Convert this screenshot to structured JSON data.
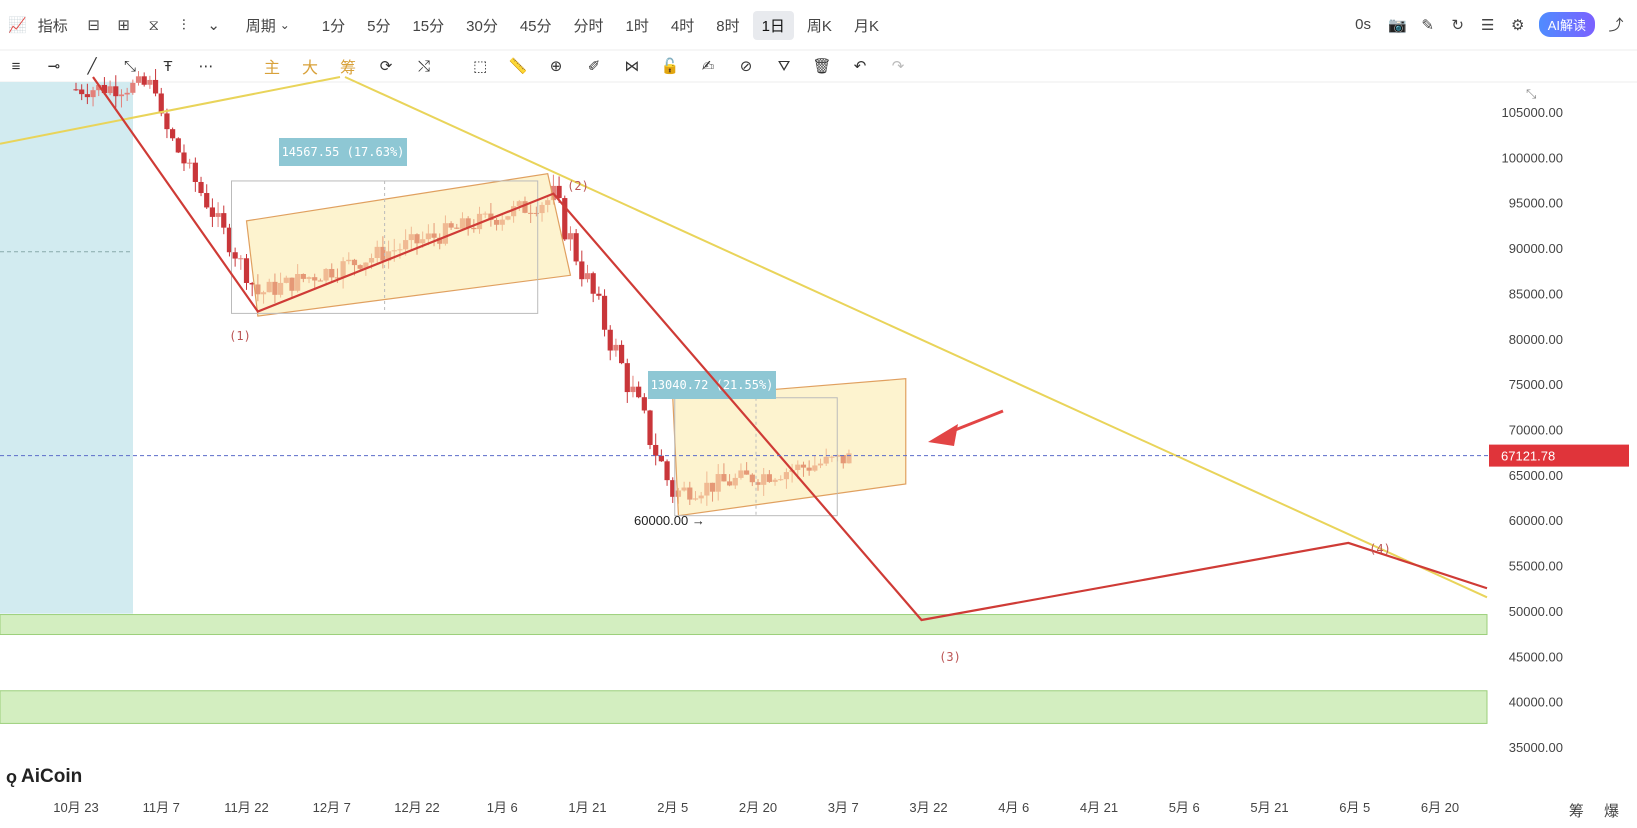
{
  "toolbar": {
    "indicator_label": "指标",
    "period_label": "周期",
    "intervals": [
      "1分",
      "5分",
      "15分",
      "30分",
      "45分",
      "分时",
      "1时",
      "4时",
      "8时",
      "1日",
      "周K",
      "月K"
    ],
    "active_interval": "1日",
    "countdown": "0s",
    "ai_label": "AI解读"
  },
  "drawing_tools": {
    "gold_labels": [
      "主",
      "大",
      "筹"
    ]
  },
  "brand": {
    "name": "AiCoin"
  },
  "bottom_chars": "筹 爆",
  "colors": {
    "up": "#e3807a",
    "down": "#c9363a",
    "wave_line": "#cf3b36",
    "trend_line": "#e9d45a",
    "channel_fill": "#fbeaa8",
    "support_zone": "#d3eec0",
    "price_tag": "#e0343a",
    "measure_label": "#8ec7d4",
    "left_panel": "#d2ebf0"
  },
  "chart_data": {
    "type": "candlestick",
    "y_axis": {
      "ticks": [
        "105000.00",
        "100000.00",
        "95000.00",
        "90000.00",
        "85000.00",
        "80000.00",
        "75000.00",
        "70000.00",
        "65000.00",
        "60000.00",
        "55000.00",
        "50000.00",
        "45000.00",
        "40000.00",
        "35000.00"
      ],
      "min": 33500,
      "max": 108000
    },
    "x_axis": {
      "ticks": [
        "10月 23",
        "11月 7",
        "11月 22",
        "12月 7",
        "12月 22",
        "1月 6",
        "1月 21",
        "2月 5",
        "2月 20",
        "3月 7",
        "3月 22",
        "4月 6",
        "4月 21",
        "5月 6",
        "5月 21",
        "6月 5",
        "6月 20"
      ]
    },
    "current_price": "67121.78",
    "wave_labels": [
      {
        "label": "(1)",
        "x": "11月 24",
        "y": 84500
      },
      {
        "label": "(2)",
        "x": "1月 14",
        "y": 97000
      },
      {
        "label": "(3)",
        "x": "3月 24",
        "y": 49000
      },
      {
        "label": "(4)",
        "x": "6月 3",
        "y": 57500
      }
    ],
    "wave_path": [
      {
        "x": "10月 23",
        "y": 116000
      },
      {
        "x": "11月 24",
        "y": 83000
      },
      {
        "x": "1月 15",
        "y": 96000
      },
      {
        "x": "3月 22",
        "y": 49000
      },
      {
        "x": "6月 3",
        "y": 57500
      },
      {
        "x": "7月 1",
        "y": 52500
      }
    ],
    "trend_line": [
      {
        "x": "10月 7",
        "y": 101500
      },
      {
        "x": "12月 7",
        "y": 108000
      },
      {
        "x": "7月 1",
        "y": 51500
      }
    ],
    "measurements": [
      {
        "label": "14567.55 (17.63%)",
        "low": 82800,
        "high": 97400
      },
      {
        "label": "13040.72 (21.55%)",
        "low": 60500,
        "high": 73500
      }
    ],
    "price_marker": {
      "label": "60000.00",
      "y": 60000
    },
    "support_zones": [
      {
        "low": 47400,
        "high": 49600
      },
      {
        "low": 37600,
        "high": 41200
      }
    ],
    "candles_segments": [
      {
        "from": "10月 23",
        "to": "11月 7",
        "start": 107500,
        "end": 108000,
        "note": "top consolidation"
      },
      {
        "from": "11月 7",
        "to": "11月 24",
        "start": 104000,
        "end": 85000,
        "note": "decline"
      },
      {
        "from": "11月 24",
        "to": "1月 15",
        "start": 85000,
        "end": 95500,
        "note": "rising channel"
      },
      {
        "from": "1月 15",
        "to": "2月 5",
        "start": 95500,
        "end": 63000,
        "note": "sharp drop"
      },
      {
        "from": "2月 5",
        "to": "3月 9",
        "start": 63000,
        "end": 67000,
        "note": "second channel"
      }
    ]
  }
}
